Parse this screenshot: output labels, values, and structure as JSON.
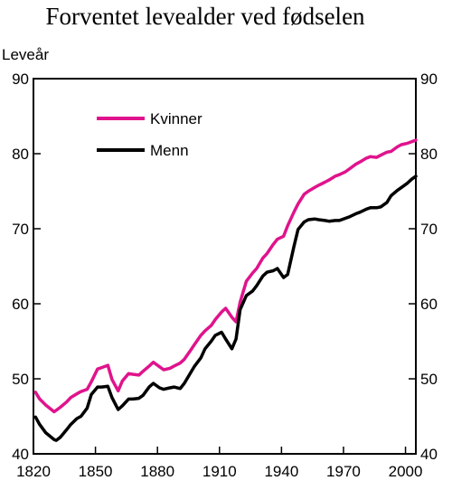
{
  "chart_data": {
    "type": "line",
    "title": "Forventet levealder ved fødselen",
    "ylabel": "Leveår",
    "xlabel": "",
    "xlim": [
      1820,
      2005
    ],
    "ylim": [
      40,
      90
    ],
    "x_ticks": [
      1820,
      1850,
      1880,
      1910,
      1940,
      1970,
      2000
    ],
    "y_ticks": [
      40,
      50,
      60,
      70,
      80,
      90
    ],
    "grid": false,
    "legend_position": "top-left",
    "series": [
      {
        "name": "Kvinner",
        "color": "#e0138c",
        "x": [
          1821,
          1823,
          1826,
          1830,
          1833,
          1836,
          1838,
          1841,
          1843,
          1846,
          1848,
          1851,
          1853,
          1856,
          1858,
          1861,
          1863,
          1866,
          1868,
          1871,
          1873,
          1876,
          1878,
          1881,
          1883,
          1886,
          1888,
          1891,
          1893,
          1896,
          1898,
          1901,
          1903,
          1906,
          1908,
          1911,
          1913,
          1916,
          1918,
          1920,
          1923,
          1926,
          1928,
          1931,
          1933,
          1936,
          1938,
          1941,
          1943,
          1946,
          1948,
          1951,
          1953,
          1956,
          1958,
          1961,
          1963,
          1966,
          1968,
          1971,
          1973,
          1976,
          1978,
          1981,
          1983,
          1986,
          1988,
          1991,
          1993,
          1996,
          1998,
          2001,
          2003,
          2005
        ],
        "values": [
          48.2,
          47.3,
          46.5,
          45.6,
          46.2,
          46.9,
          47.5,
          48.0,
          48.3,
          48.6,
          49.6,
          51.3,
          51.5,
          51.8,
          49.9,
          48.4,
          49.7,
          50.7,
          50.6,
          50.5,
          51.0,
          51.7,
          52.2,
          51.6,
          51.2,
          51.4,
          51.7,
          52.1,
          52.6,
          53.8,
          54.6,
          55.8,
          56.4,
          57.1,
          57.9,
          58.9,
          59.4,
          58.2,
          57.6,
          60.2,
          63.0,
          64.1,
          64.7,
          66.1,
          66.7,
          67.9,
          68.6,
          69.0,
          70.4,
          72.2,
          73.3,
          74.6,
          75.0,
          75.5,
          75.8,
          76.2,
          76.5,
          77.0,
          77.2,
          77.6,
          78.0,
          78.6,
          78.9,
          79.4,
          79.6,
          79.5,
          79.8,
          80.2,
          80.3,
          80.9,
          81.2,
          81.4,
          81.6,
          81.8
        ]
      },
      {
        "name": "Menn",
        "color": "#000000",
        "x": [
          1821,
          1823,
          1826,
          1830,
          1831,
          1833,
          1836,
          1838,
          1841,
          1843,
          1846,
          1848,
          1851,
          1853,
          1856,
          1858,
          1861,
          1863,
          1866,
          1868,
          1871,
          1873,
          1876,
          1878,
          1881,
          1883,
          1886,
          1888,
          1891,
          1893,
          1896,
          1898,
          1901,
          1903,
          1906,
          1908,
          1911,
          1913,
          1916,
          1918,
          1920,
          1923,
          1926,
          1928,
          1931,
          1933,
          1936,
          1938,
          1941,
          1943,
          1946,
          1948,
          1951,
          1953,
          1956,
          1958,
          1961,
          1963,
          1966,
          1968,
          1971,
          1973,
          1976,
          1978,
          1981,
          1983,
          1986,
          1988,
          1991,
          1993,
          1996,
          1998,
          2001,
          2003,
          2005
        ],
        "values": [
          44.9,
          43.9,
          42.8,
          41.9,
          41.8,
          42.2,
          43.2,
          43.9,
          44.7,
          45.0,
          46.1,
          47.9,
          48.9,
          48.9,
          49.0,
          47.5,
          45.9,
          46.4,
          47.3,
          47.3,
          47.4,
          47.8,
          48.9,
          49.4,
          48.8,
          48.6,
          48.8,
          48.9,
          48.7,
          49.4,
          50.8,
          51.7,
          52.8,
          54.0,
          55.0,
          55.8,
          56.2,
          55.3,
          54.0,
          55.3,
          59.2,
          61.1,
          61.7,
          62.4,
          63.7,
          64.2,
          64.4,
          64.7,
          63.5,
          63.9,
          67.6,
          69.9,
          70.9,
          71.2,
          71.3,
          71.2,
          71.1,
          71.0,
          71.1,
          71.1,
          71.4,
          71.6,
          72.0,
          72.2,
          72.6,
          72.8,
          72.8,
          72.9,
          73.5,
          74.4,
          75.1,
          75.5,
          76.1,
          76.6,
          77.0
        ]
      }
    ]
  }
}
